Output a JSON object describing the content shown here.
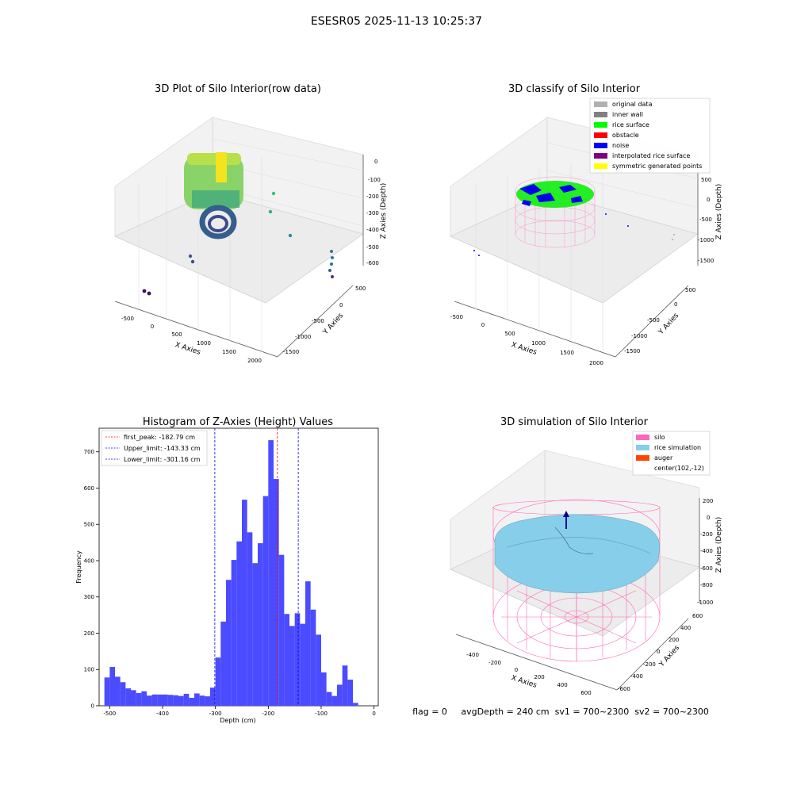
{
  "figure": {
    "title": "ESESR05 2025-11-13 10:25:37",
    "status_line": "flag = 0     avgDepth = 240 cm  sv1 = 700~2300  sv2 = 700~2300"
  },
  "colors": {
    "hist_bar": "#4b4bff",
    "first_peak": "#ff0000",
    "limits": "#0000ff",
    "silo": "#ff69b4",
    "rice_sim": "#87ceeb",
    "auger": "#ff4500",
    "original": "#b0b0b0",
    "inner_wall": "#808080",
    "rice_surface": "#00ff00",
    "obstacle": "#ff0000",
    "noise": "#0000ff",
    "interp": "#800080",
    "sym": "#ffff00"
  },
  "chart_data": [
    {
      "type": "scatter",
      "title": "3D Plot of Silo Interior(row data)",
      "xlabel": "X Axies",
      "ylabel": "Y Axies",
      "zlabel": "Z Axies (Depth)",
      "xticks": [
        "-500",
        "0",
        "500",
        "1000",
        "1500",
        "2000"
      ],
      "yticks": [
        "500",
        "0",
        "-500",
        "-1000",
        "-1500"
      ],
      "zticks": [
        "0",
        "-100",
        "-200",
        "-300",
        "-400",
        "-500",
        "-600"
      ]
    },
    {
      "type": "scatter",
      "title": "3D classify of Silo Interior",
      "xlabel": "X Axies",
      "ylabel": "Y Axies",
      "zlabel": "Z Axies (Depth)",
      "xticks": [
        "-500",
        "0",
        "500",
        "1000",
        "1500",
        "2000"
      ],
      "yticks": [
        "500",
        "0",
        "-500",
        "-1000",
        "-1500"
      ],
      "zticks": [
        "500",
        "0",
        "-500",
        "-1000",
        "-1500"
      ],
      "legend": [
        "original data",
        "inner wall",
        "rice surface",
        "obstacle",
        "noise",
        "interpolated rice surface",
        "symmetric generated points"
      ],
      "legend_placement": "top-right"
    },
    {
      "type": "bar",
      "title": "Histogram of Z-Axies (Height) Values",
      "xlabel": "Depth (cm)",
      "ylabel": "Frequency",
      "xlim": [
        -520,
        8
      ],
      "ylim": [
        0,
        765
      ],
      "xticks": [
        -500,
        -400,
        -300,
        -200,
        -100,
        0
      ],
      "yticks": [
        0,
        100,
        200,
        300,
        400,
        500,
        600,
        700
      ],
      "bin_width": 10,
      "bins_start": [
        -510,
        -500,
        -490,
        -480,
        -470,
        -460,
        -450,
        -440,
        -430,
        -420,
        -410,
        -400,
        -390,
        -380,
        -370,
        -360,
        -350,
        -340,
        -330,
        -320,
        -310,
        -300,
        -290,
        -280,
        -270,
        -260,
        -250,
        -240,
        -230,
        -220,
        -210,
        -200,
        -190,
        -180,
        -170,
        -160,
        -150,
        -140,
        -130,
        -120,
        -110,
        -100,
        -90,
        -80,
        -70,
        -60,
        -50,
        -40,
        -30,
        -20
      ],
      "values": [
        78,
        107,
        80,
        65,
        48,
        43,
        35,
        40,
        28,
        31,
        31,
        31,
        30,
        29,
        27,
        33,
        22,
        34,
        28,
        26,
        50,
        133,
        232,
        347,
        402,
        453,
        568,
        478,
        393,
        448,
        578,
        732,
        625,
        416,
        253,
        220,
        255,
        226,
        343,
        265,
        196,
        92,
        38,
        27,
        58,
        111,
        72,
        8,
        0,
        0
      ],
      "lines": [
        {
          "name": "first_peak: -182.79 cm",
          "x": -182.79,
          "color": "#ff0000"
        },
        {
          "name": "Upper_limit: -143.33 cm",
          "x": -143.33,
          "color": "#0000ff"
        },
        {
          "name": "Lower_limit: -301.16 cm",
          "x": -301.16,
          "color": "#0000ff"
        }
      ],
      "legend_placement": "top-left"
    },
    {
      "type": "scatter",
      "title": "3D simulation of Silo Interior",
      "xlabel": "X Axies",
      "ylabel": "Y Axies",
      "zlabel": "Z Axies (Depth)",
      "xticks": [
        "-400",
        "-200",
        "0",
        "200",
        "400",
        "600"
      ],
      "yticks": [
        "600",
        "400",
        "200",
        "0",
        "-200",
        "-400",
        "-600"
      ],
      "zticks": [
        "200",
        "0",
        "-200",
        "-400",
        "-600",
        "-800",
        "-1000"
      ],
      "legend": [
        "silo",
        "rice simulation",
        "auger",
        "center(102,-12)"
      ],
      "legend_placement": "top-right"
    }
  ]
}
